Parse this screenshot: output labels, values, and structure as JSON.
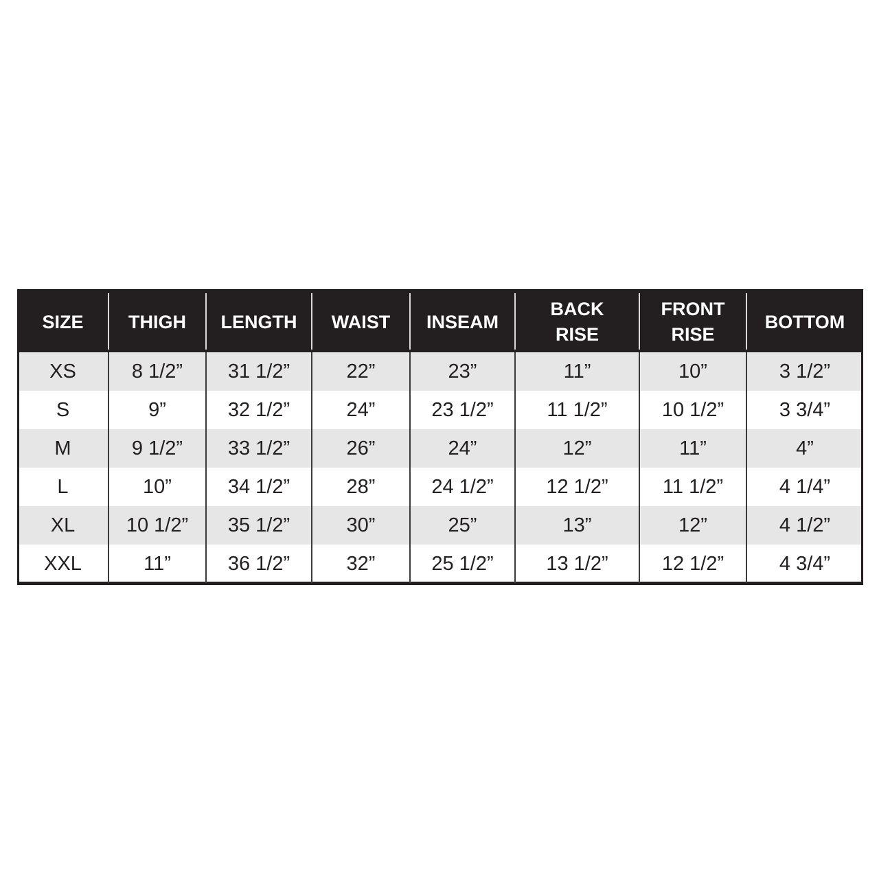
{
  "table": {
    "header": [
      [
        "SIZE"
      ],
      [
        "THIGH"
      ],
      [
        "LENGTH"
      ],
      [
        "WAIST"
      ],
      [
        "INSEAM"
      ],
      [
        "BACK",
        "RISE"
      ],
      [
        "FRONT",
        "RISE"
      ],
      [
        "BOTTOM"
      ]
    ],
    "rows": [
      [
        "XS",
        "8 1/2”",
        "31 1/2”",
        "22”",
        "23”",
        "11”",
        "10”",
        "3 1/2”"
      ],
      [
        "S",
        "9”",
        "32 1/2”",
        "24”",
        "23 1/2”",
        "11 1/2”",
        "10 1/2”",
        "3 3/4”"
      ],
      [
        "M",
        "9 1/2”",
        "33 1/2”",
        "26”",
        "24”",
        "12”",
        "11”",
        "4”"
      ],
      [
        "L",
        "10”",
        "34 1/2”",
        "28”",
        "24 1/2”",
        "12 1/2”",
        "11 1/2”",
        "4 1/4”"
      ],
      [
        "XL",
        "10 1/2”",
        "35 1/2”",
        "30”",
        "25”",
        "13”",
        "12”",
        "4 1/2”"
      ],
      [
        "XXL",
        "11”",
        "36 1/2”",
        "32”",
        "25 1/2”",
        "13 1/2”",
        "12 1/2”",
        "4 3/4”"
      ]
    ]
  }
}
